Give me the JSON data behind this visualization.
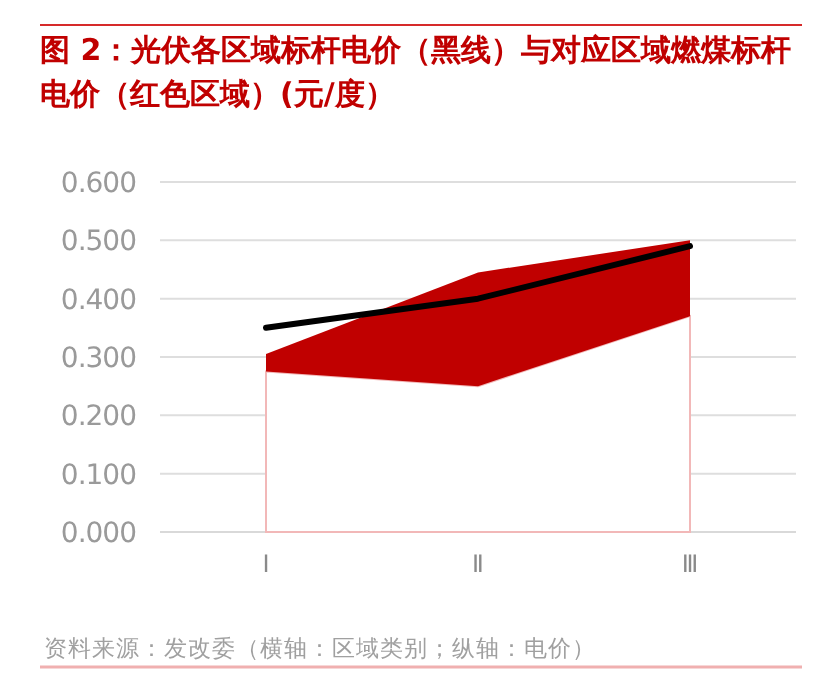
{
  "chart_data": {
    "type": "line",
    "title": "图 2：光伏各区域标杆电价（黑线）与对应区域燃煤标杆电价（红色区域）(元/度）",
    "categories": [
      "Ⅰ",
      "Ⅱ",
      "Ⅲ"
    ],
    "series": [
      {
        "type": "area",
        "color": "#ffffff",
        "values": [
          0.275,
          0.25,
          0.37
        ]
      },
      {
        "type": "area",
        "color": "#c00000",
        "values": [
          0.03,
          0.195,
          0.13
        ]
      },
      {
        "type": "line",
        "color": "#000000",
        "values": [
          0.35,
          0.4,
          0.49
        ]
      }
    ],
    "ylim": [
      0,
      0.6
    ],
    "yticks": [
      {
        "value": 0,
        "label": "0.000"
      },
      {
        "value": 0.1,
        "label": "0.100"
      },
      {
        "value": 0.2,
        "label": "0.200"
      },
      {
        "value": 0.3,
        "label": "0.300"
      },
      {
        "value": 0.4,
        "label": "0.400"
      },
      {
        "value": 0.5,
        "label": "0.500"
      },
      {
        "value": 0.6,
        "label": "0.600"
      }
    ],
    "stacked": true,
    "grid": "y",
    "annotations": [
      "资料来源：发改委（横轴：区域类别；纵轴：电价）"
    ]
  }
}
